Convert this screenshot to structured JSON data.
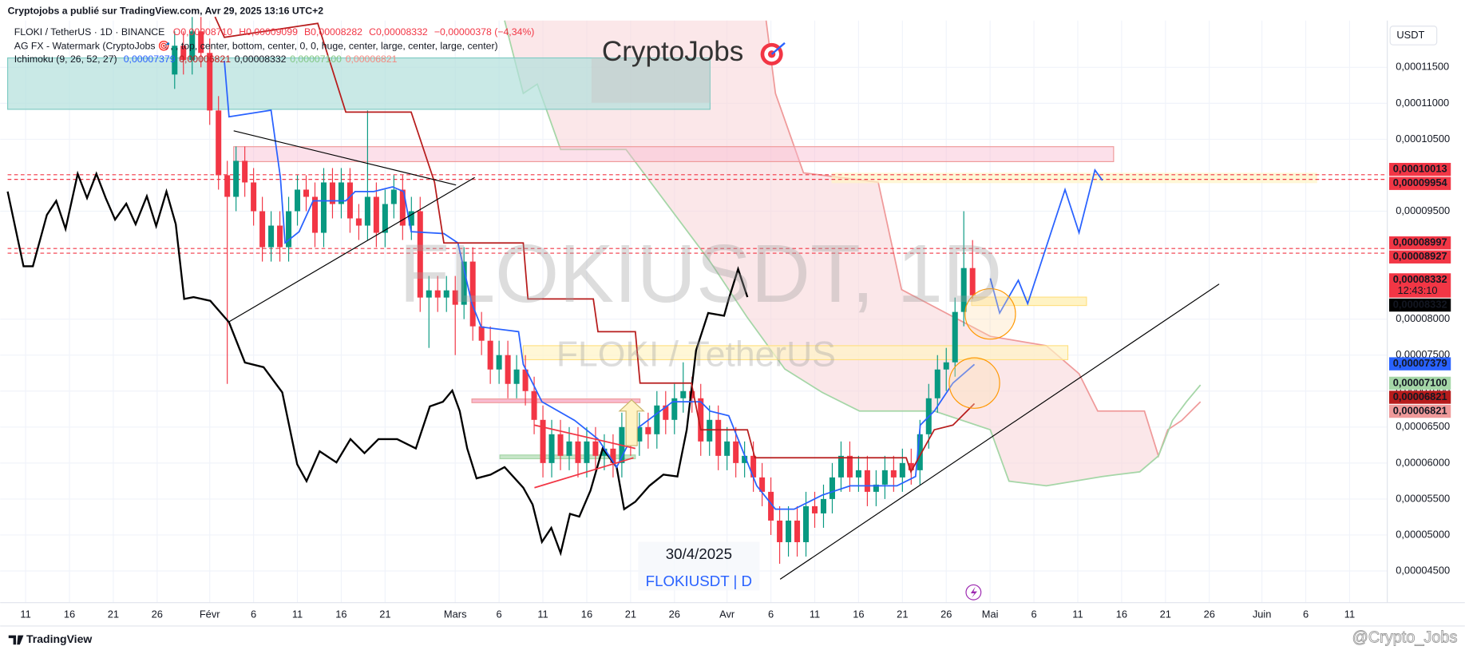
{
  "chart_data": {
    "type": "candlestick",
    "header": "Cryptojobs a publié sur TradingView.com, Avr 29, 2025 13:16 UTC+2",
    "legend": {
      "symbol": "FLOKI / TetherUS · 1D · BINANCE",
      "ohlc": [
        "O0,00008710",
        "H0,00009099",
        "B0,00008282",
        "C0,00008332",
        "−0,00000378 (−4,34%)"
      ],
      "watermark_indicator": "AG FX - Watermark (CryptoJobs 🎯, , top, center, bottom, center, 0, 0, huge, center, large, center, large, center)",
      "ichimoku": "Ichimoku (9, 26, 52, 27)",
      "ichimoku_values": [
        {
          "label": "0,00007379",
          "color": "#2962ff"
        },
        {
          "label": "0,00006821",
          "color": "#b71c1c"
        },
        {
          "label": "0,00008332",
          "color": "#131722"
        },
        {
          "label": "0,00007100",
          "color": "#81c784"
        },
        {
          "label": "0,00006821",
          "color": "#f28b82"
        }
      ]
    },
    "watermark": {
      "brand": "CryptoJobs",
      "symbol": "FLOKIUSDT, 1D",
      "name": "FLOKI / TetherUS"
    },
    "annotations": {
      "date": "30/4/2025",
      "ticker": "FLOKIUSDT | D"
    },
    "currency": "USDT",
    "footer": {
      "logo": "TradingView",
      "handle": "@Crypto_Jobs"
    },
    "up_color": "#089981",
    "down_color": "#f23645",
    "grid": true,
    "xlim": [
      -2.9,
      155.3
    ],
    "ylim": [
      4.06e-05,
      0.0001215
    ],
    "xticks": [
      {
        "value": 0,
        "label": "11"
      },
      {
        "value": 5,
        "label": "16"
      },
      {
        "value": 10,
        "label": "21"
      },
      {
        "value": 15,
        "label": "26"
      },
      {
        "value": 21,
        "label": "Févr"
      },
      {
        "value": 26,
        "label": "6"
      },
      {
        "value": 31,
        "label": "11"
      },
      {
        "value": 36,
        "label": "16"
      },
      {
        "value": 41,
        "label": "21"
      },
      {
        "value": 49,
        "label": "Mars"
      },
      {
        "value": 54,
        "label": "6"
      },
      {
        "value": 59,
        "label": "11"
      },
      {
        "value": 64,
        "label": "16"
      },
      {
        "value": 69,
        "label": "21"
      },
      {
        "value": 74,
        "label": "26"
      },
      {
        "value": 80,
        "label": "Avr"
      },
      {
        "value": 85,
        "label": "6"
      },
      {
        "value": 90,
        "label": "11"
      },
      {
        "value": 95,
        "label": "16"
      },
      {
        "value": 100,
        "label": "21"
      },
      {
        "value": 105,
        "label": "26"
      },
      {
        "value": 110,
        "label": "Mai"
      },
      {
        "value": 115,
        "label": "6"
      },
      {
        "value": 120,
        "label": "11"
      },
      {
        "value": 125,
        "label": "16"
      },
      {
        "value": 130,
        "label": "21"
      },
      {
        "value": 135,
        "label": "26"
      },
      {
        "value": 141,
        "label": "Juin"
      },
      {
        "value": 146,
        "label": "6"
      },
      {
        "value": 151,
        "label": "11"
      }
    ],
    "yticks": [
      {
        "value": 0.000115,
        "label": "0,00011500"
      },
      {
        "value": 0.00011,
        "label": "0,00011000"
      },
      {
        "value": 0.000105,
        "label": "0,00010500"
      },
      {
        "value": 9.5e-05,
        "label": "0,00009500"
      },
      {
        "value": 8e-05,
        "label": "0,00008000"
      },
      {
        "value": 7.5e-05,
        "label": "0,00007500"
      },
      {
        "value": 7e-05,
        "label": "0,00007000"
      },
      {
        "value": 6.5e-05,
        "label": "0,00006500"
      },
      {
        "value": 6e-05,
        "label": "0,00006000"
      },
      {
        "value": 5.5e-05,
        "label": "0,00005500"
      },
      {
        "value": 5e-05,
        "label": "0,00005000"
      },
      {
        "value": 4.5e-05,
        "label": "0,00004500"
      }
    ],
    "price_labels": [
      {
        "value": 0.00010013,
        "label": "0,00010013",
        "color": "#f23645",
        "text_color": "#ffffff"
      },
      {
        "value": 9.954e-05,
        "label": "0,00009954",
        "color": "#f23645",
        "text_color": "#ffffff"
      },
      {
        "value": 8.997e-05,
        "label": "0,00008997",
        "color": "#f23645",
        "text_color": "#ffffff"
      },
      {
        "value": 8.927e-05,
        "label": "0,00008927",
        "color": "#f23645",
        "text_color": "#ffffff"
      },
      {
        "value": 8.332e-05,
        "label": "0,00008332",
        "countdown": "12:43:10",
        "color": "#f23645",
        "text_color": "#ffffff"
      },
      {
        "value": 8.332e-05,
        "label": "0,00008332",
        "color": "#000000",
        "text_color": "#ffffff"
      },
      {
        "value": 7.379e-05,
        "label": "0,00007379",
        "color": "#2962ff",
        "text_color": "#ffffff"
      },
      {
        "value": 7.1e-05,
        "label": "0,00007100",
        "color": "#a5d6a7",
        "text_color": "#131722"
      },
      {
        "value": 6.821e-05,
        "label": "0,00006821",
        "color": "#b71c1c",
        "text_color": "#ffffff"
      },
      {
        "value": 6.821e-05,
        "label": "0,00006821",
        "color": "#ef9a9a",
        "text_color": "#131722"
      }
    ],
    "x": [
      17,
      18,
      19,
      20,
      21,
      22,
      23,
      24,
      25,
      26,
      27,
      28,
      29,
      30,
      31,
      32,
      33,
      34,
      35,
      36,
      37,
      38,
      39,
      40,
      41,
      42,
      43,
      44,
      45,
      46,
      47,
      48,
      49,
      50,
      51,
      52,
      53,
      54,
      55,
      56,
      57,
      58,
      59,
      60,
      61,
      62,
      63,
      64,
      65,
      66,
      67,
      68,
      69,
      70,
      71,
      72,
      73,
      74,
      75,
      76,
      77,
      78,
      79,
      80,
      81,
      82,
      83,
      84,
      85,
      86,
      87,
      88,
      89,
      90,
      91,
      92,
      93,
      94,
      95,
      96,
      97,
      98,
      99,
      100,
      101,
      102,
      103,
      104,
      105,
      106,
      107,
      108
    ],
    "candles": [
      [
        0.000114,
        0.00012,
        0.000112,
        0.000118
      ],
      [
        0.000118,
        0.00012,
        0.000114,
        0.000116
      ],
      [
        0.000116,
        0.000122,
        0.000114,
        0.00012
      ],
      [
        0.00012,
        0.000122,
        0.000115,
        0.000117
      ],
      [
        0.000117,
        0.000119,
        0.000107,
        0.000109
      ],
      [
        0.000109,
        0.000111,
        9.8e-05,
        0.0001
      ],
      [
        0.0001,
        0.000102,
        7.1e-05,
        9.7e-05
      ],
      [
        9.7e-05,
        0.000104,
        9.5e-05,
        0.000102
      ],
      [
        0.000102,
        0.000104,
        9.7e-05,
        9.9e-05
      ],
      [
        9.9e-05,
        0.000101,
        9.3e-05,
        9.5e-05
      ],
      [
        9.5e-05,
        9.7e-05,
        8.8e-05,
        9e-05
      ],
      [
        9e-05,
        9.5e-05,
        8.8e-05,
        9.3e-05
      ],
      [
        9.3e-05,
        9.5e-05,
        8.8e-05,
        9e-05
      ],
      [
        9e-05,
        9.7e-05,
        8.8e-05,
        9.5e-05
      ],
      [
        9.5e-05,
        0.0001,
        9.3e-05,
        9.8e-05
      ],
      [
        9.8e-05,
        0.0001,
        9.5e-05,
        9.7e-05
      ],
      [
        9.7e-05,
        9.9e-05,
        9e-05,
        9.2e-05
      ],
      [
        9.2e-05,
        0.000101,
        9e-05,
        9.9e-05
      ],
      [
        9.9e-05,
        0.000101,
        9.4e-05,
        9.6e-05
      ],
      [
        9.6e-05,
        0.000101,
        9.4e-05,
        9.9e-05
      ],
      [
        9.9e-05,
        0.000101,
        9.2e-05,
        9.4e-05
      ],
      [
        9.4e-05,
        9.6e-05,
        9.1e-05,
        9.3e-05
      ],
      [
        9.3e-05,
        0.000109,
        9.1e-05,
        9.7e-05
      ],
      [
        9.7e-05,
        9.9e-05,
        9e-05,
        9.2e-05
      ],
      [
        9.2e-05,
        9.8e-05,
        9e-05,
        9.6e-05
      ],
      [
        9.6e-05,
        0.0001,
        9.4e-05,
        9.8e-05
      ],
      [
        9.8e-05,
        0.0001,
        9.1e-05,
        9.3e-05
      ],
      [
        9.3e-05,
        9.7e-05,
        9.1e-05,
        9.5e-05
      ],
      [
        9.5e-05,
        9.7e-05,
        8.1e-05,
        8.3e-05
      ],
      [
        8.3e-05,
        8.6e-05,
        7.6e-05,
        8.4e-05
      ],
      [
        8.4e-05,
        8.6e-05,
        8.1e-05,
        8.3e-05
      ],
      [
        8.3e-05,
        8.6e-05,
        8.1e-05,
        8.4e-05
      ],
      [
        8.4e-05,
        8.6e-05,
        7.5e-05,
        8.2e-05
      ],
      [
        8.2e-05,
        9e-05,
        8e-05,
        8.8e-05
      ],
      [
        8.8e-05,
        9e-05,
        7.7e-05,
        7.9e-05
      ],
      [
        7.9e-05,
        8.1e-05,
        7.5e-05,
        7.7e-05
      ],
      [
        7.7e-05,
        7.9e-05,
        7.1e-05,
        7.3e-05
      ],
      [
        7.3e-05,
        7.7e-05,
        7.1e-05,
        7.5e-05
      ],
      [
        7.5e-05,
        7.7e-05,
        6.9e-05,
        7.1e-05
      ],
      [
        7.1e-05,
        7.5e-05,
        6.9e-05,
        7.3e-05
      ],
      [
        7.3e-05,
        7.5e-05,
        6.8e-05,
        7e-05
      ],
      [
        7e-05,
        7.2e-05,
        6.4e-05,
        6.6e-05
      ],
      [
        6.6e-05,
        6.8e-05,
        5.8e-05,
        6e-05
      ],
      [
        6e-05,
        6.6e-05,
        5.8e-05,
        6.4e-05
      ],
      [
        6.4e-05,
        6.6e-05,
        5.9e-05,
        6.1e-05
      ],
      [
        6.1e-05,
        6.5e-05,
        5.9e-05,
        6.3e-05
      ],
      [
        6.3e-05,
        6.5e-05,
        5.8e-05,
        6e-05
      ],
      [
        6e-05,
        6.5e-05,
        5.8e-05,
        6.3e-05
      ],
      [
        6.3e-05,
        6.5e-05,
        5.9e-05,
        6.1e-05
      ],
      [
        6.1e-05,
        6.4e-05,
        5.9e-05,
        6.2e-05
      ],
      [
        6.2e-05,
        6.4e-05,
        5.8e-05,
        6e-05
      ],
      [
        6e-05,
        6.7e-05,
        5.8e-05,
        6.5e-05
      ],
      [
        6.5e-05,
        6.7e-05,
        6.1e-05,
        6.3e-05
      ],
      [
        6.3e-05,
        6.7e-05,
        6.1e-05,
        6.5e-05
      ],
      [
        6.5e-05,
        6.7e-05,
        6.2e-05,
        6.4e-05
      ],
      [
        6.4e-05,
        7e-05,
        6.2e-05,
        6.8e-05
      ],
      [
        6.8e-05,
        7e-05,
        6.4e-05,
        6.6e-05
      ],
      [
        6.6e-05,
        7.1e-05,
        6.4e-05,
        6.9e-05
      ],
      [
        6.9e-05,
        7.4e-05,
        6.7e-05,
        7e-05
      ],
      [
        7e-05,
        7.2e-05,
        6.7e-05,
        6.9e-05
      ],
      [
        6.9e-05,
        7.1e-05,
        6.1e-05,
        6.3e-05
      ],
      [
        6.3e-05,
        6.8e-05,
        6.1e-05,
        6.6e-05
      ],
      [
        6.6e-05,
        6.8e-05,
        5.9e-05,
        6.1e-05
      ],
      [
        6.1e-05,
        6.5e-05,
        5.9e-05,
        6.3e-05
      ],
      [
        6.3e-05,
        6.5e-05,
        5.8e-05,
        6e-05
      ],
      [
        6e-05,
        6.3e-05,
        5.8e-05,
        6.1e-05
      ],
      [
        6.1e-05,
        6.3e-05,
        5.6e-05,
        5.8e-05
      ],
      [
        5.8e-05,
        6e-05,
        5.4e-05,
        5.6e-05
      ],
      [
        5.6e-05,
        5.8e-05,
        5e-05,
        5.2e-05
      ],
      [
        5.2e-05,
        5.4e-05,
        4.6e-05,
        4.9e-05
      ],
      [
        4.9e-05,
        5.4e-05,
        4.7e-05,
        5.2e-05
      ],
      [
        5.2e-05,
        5.4e-05,
        4.7e-05,
        4.9e-05
      ],
      [
        4.9e-05,
        5.6e-05,
        4.7e-05,
        5.4e-05
      ],
      [
        5.4e-05,
        5.6e-05,
        5.1e-05,
        5.3e-05
      ],
      [
        5.3e-05,
        5.7e-05,
        5.1e-05,
        5.5e-05
      ],
      [
        5.5e-05,
        6e-05,
        5.3e-05,
        5.8e-05
      ],
      [
        5.8e-05,
        6.3e-05,
        5.6e-05,
        6.1e-05
      ],
      [
        6.1e-05,
        6.3e-05,
        5.6e-05,
        5.8e-05
      ],
      [
        5.8e-05,
        6.1e-05,
        5.6e-05,
        5.9e-05
      ],
      [
        5.9e-05,
        6.1e-05,
        5.4e-05,
        5.6e-05
      ],
      [
        5.6e-05,
        5.9e-05,
        5.4e-05,
        5.7e-05
      ],
      [
        5.7e-05,
        6.1e-05,
        5.5e-05,
        5.9e-05
      ],
      [
        5.9e-05,
        6.1e-05,
        5.6e-05,
        5.8e-05
      ],
      [
        5.8e-05,
        6.2e-05,
        5.6e-05,
        6e-05
      ],
      [
        6e-05,
        6.2e-05,
        5.7e-05,
        5.9e-05
      ],
      [
        5.9e-05,
        6.6e-05,
        5.7e-05,
        6.4e-05
      ],
      [
        6.4e-05,
        7.1e-05,
        6.2e-05,
        6.9e-05
      ],
      [
        6.9e-05,
        7.5e-05,
        6.7e-05,
        7.3e-05
      ],
      [
        7.3e-05,
        7.6e-05,
        7e-05,
        7.4e-05
      ],
      [
        7.4e-05,
        8.3e-05,
        7.2e-05,
        8.1e-05
      ],
      [
        8.1e-05,
        9.5e-05,
        7.9e-05,
        8.71e-05
      ],
      [
        8.71e-05,
        9.099e-05,
        8.282e-05,
        8.332e-05
      ]
    ]
  }
}
